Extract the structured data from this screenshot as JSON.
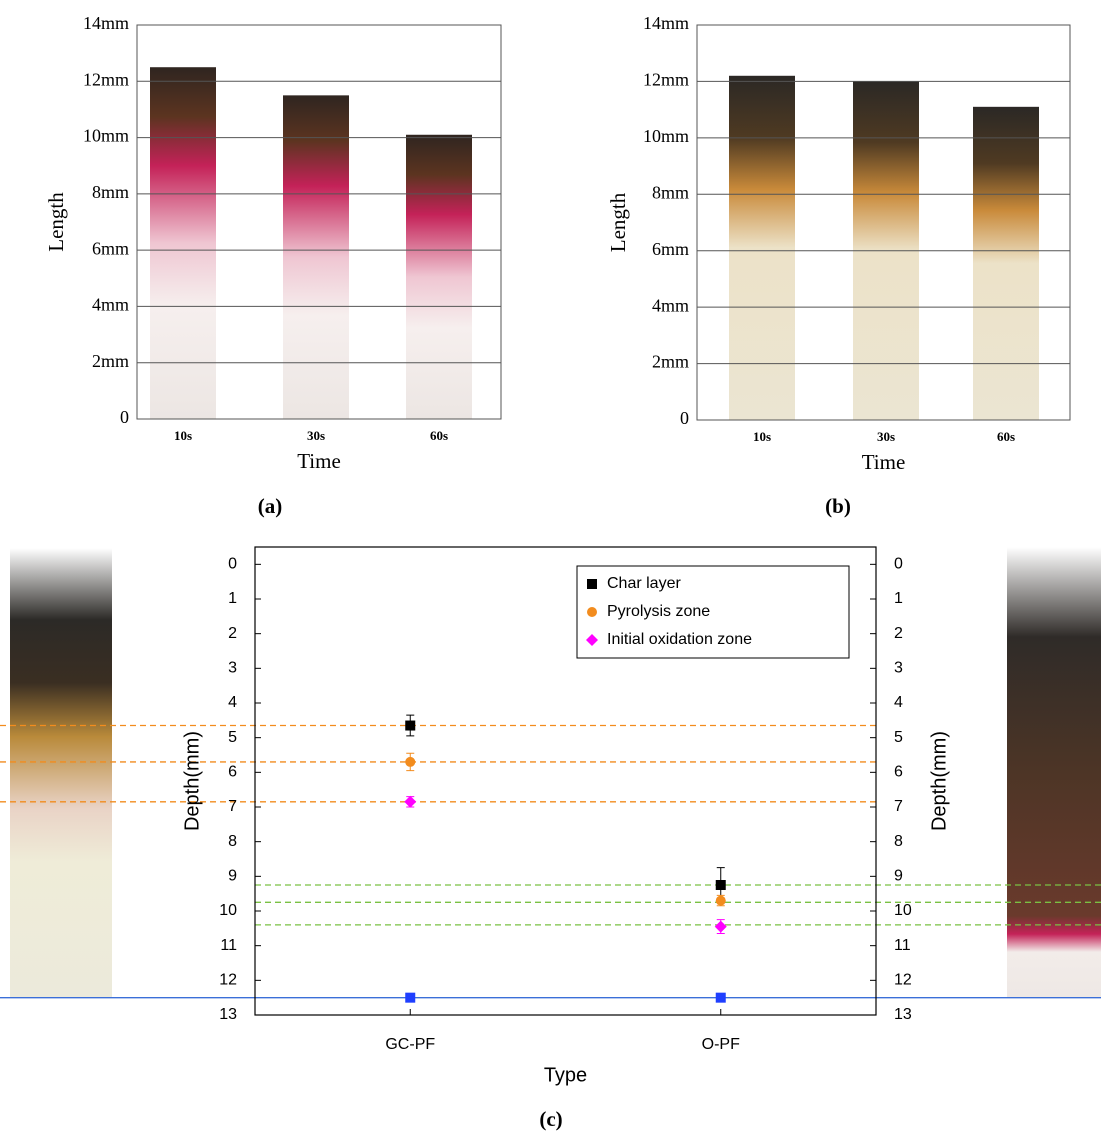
{
  "chart_data": [
    {
      "type": "bar",
      "panel_label": "(a)",
      "ylabel": "Length",
      "xlabel": "Time",
      "categories": [
        "10s",
        "30s",
        "60s"
      ],
      "values": [
        12.5,
        11.5,
        10.1
      ],
      "ylim": [
        0,
        14
      ],
      "yticks": [
        0,
        {
          "value": 2,
          "label": "2mm"
        },
        {
          "value": 4,
          "label": "4mm"
        },
        {
          "value": 6,
          "label": "6mm"
        },
        {
          "value": 8,
          "label": "8mm"
        },
        {
          "value": 10,
          "label": "10mm"
        },
        {
          "value": 12,
          "label": "12mm"
        },
        {
          "value": 14,
          "label": "14mm"
        }
      ],
      "grid": true
    },
    {
      "type": "bar",
      "panel_label": "(b)",
      "ylabel": "Length",
      "xlabel": "Time",
      "categories": [
        "10s",
        "30s",
        "60s"
      ],
      "values": [
        12.2,
        12.0,
        11.1
      ],
      "ylim": [
        0,
        14
      ],
      "yticks": [
        0,
        {
          "value": 2,
          "label": "2mm"
        },
        {
          "value": 4,
          "label": "4mm"
        },
        {
          "value": 6,
          "label": "6mm"
        },
        {
          "value": 8,
          "label": "8mm"
        },
        {
          "value": 10,
          "label": "10mm"
        },
        {
          "value": 12,
          "label": "12mm"
        },
        {
          "value": 14,
          "label": "14mm"
        }
      ],
      "grid": true
    },
    {
      "type": "scatter",
      "panel_label": "(c)",
      "xlabel": "Type",
      "ylabel": "Depth(mm)",
      "y2label": "Depth(mm)",
      "categories": [
        "GC-PF",
        "O-PF"
      ],
      "ylim": [
        -0.5,
        13
      ],
      "yticks": [
        0,
        1,
        2,
        3,
        4,
        5,
        6,
        7,
        8,
        9,
        10,
        11,
        12,
        13
      ],
      "y2lim": [
        -0.5,
        13
      ],
      "y2ticks": [
        0,
        1,
        2,
        3,
        4,
        5,
        6,
        7,
        8,
        9,
        10,
        11,
        12,
        13
      ],
      "y_inverted": true,
      "series": [
        {
          "name": "Char layer",
          "color": "#000000",
          "marker": "square",
          "values": [
            4.65,
            9.25
          ],
          "errors": [
            0.3,
            0.5
          ]
        },
        {
          "name": "Pyrolysis zone",
          "color": "#f28c1e",
          "marker": "circle",
          "values": [
            5.7,
            9.7
          ],
          "errors": [
            0.25,
            0.15
          ]
        },
        {
          "name": "Initial oxidation zone",
          "color": "#ff00ff",
          "marker": "diamond",
          "values": [
            6.85,
            10.45
          ],
          "errors": [
            0.15,
            0.2
          ]
        },
        {
          "color": "#1f3fff",
          "marker": "square",
          "values": [
            12.5,
            12.5
          ]
        }
      ],
      "reference_lines": [
        {
          "value": 4.65,
          "color": "#f28c1e",
          "style": "dashed"
        },
        {
          "value": 5.7,
          "color": "#f28c1e",
          "style": "dashed"
        },
        {
          "value": 6.85,
          "color": "#f28c1e",
          "style": "dashed"
        },
        {
          "value": 9.25,
          "color": "#7ac143",
          "style": "dashed"
        },
        {
          "value": 9.75,
          "color": "#7ac143",
          "style": "dashed"
        },
        {
          "value": 10.4,
          "color": "#7ac143",
          "style": "dashed"
        },
        {
          "value": 12.5,
          "color": "#3b6fd8",
          "style": "solid"
        }
      ]
    }
  ]
}
